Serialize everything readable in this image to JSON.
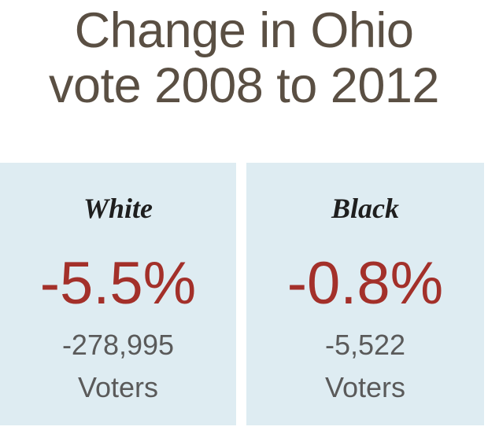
{
  "title": {
    "line1": "Change in Ohio",
    "line2": "vote 2008 to 2012"
  },
  "panels": [
    {
      "group": "White",
      "percent_change": "-5.5%",
      "voter_change": "-278,995",
      "unit": "Voters"
    },
    {
      "group": "Black",
      "percent_change": "-0.8%",
      "voter_change": "-5,522",
      "unit": "Voters"
    }
  ],
  "colors": {
    "title": "#5a4f43",
    "panel_background": "#deecf2",
    "percent": "#a3302a",
    "count": "#5a5a5a",
    "group_label": "#1e1e1e"
  }
}
